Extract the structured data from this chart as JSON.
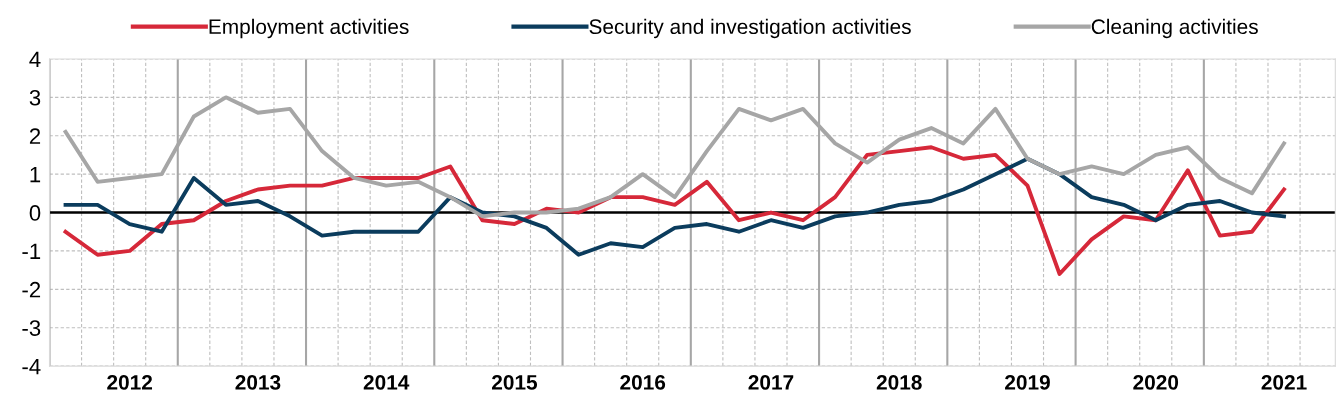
{
  "chart_data": {
    "type": "line",
    "categories": [
      null,
      null,
      "2012",
      null,
      null,
      null,
      "2013",
      null,
      null,
      null,
      "2014",
      null,
      null,
      null,
      "2015",
      null,
      null,
      null,
      "2016",
      null,
      null,
      null,
      "2017",
      null,
      null,
      null,
      "2018",
      null,
      null,
      null,
      "2019",
      null,
      null,
      null,
      "2020",
      null,
      null,
      null,
      "2021"
    ],
    "series": [
      {
        "name": "Employment activities",
        "color": "#d62839",
        "values": [
          -0.5,
          -1.1,
          -1.0,
          -0.3,
          -0.2,
          0.3,
          0.6,
          0.7,
          0.7,
          0.9,
          0.9,
          0.9,
          1.2,
          -0.2,
          -0.3,
          0.1,
          0.0,
          0.4,
          0.4,
          0.2,
          0.8,
          -0.2,
          0.0,
          -0.2,
          0.4,
          1.5,
          1.6,
          1.7,
          1.4,
          1.5,
          0.7,
          -1.6,
          -0.7,
          -0.1,
          -0.2,
          1.1,
          -0.6,
          -0.5,
          0.6
        ]
      },
      {
        "name": "Security and investigation activities",
        "color": "#0b3c5d",
        "values": [
          0.2,
          0.2,
          -0.3,
          -0.5,
          0.9,
          0.2,
          0.3,
          -0.1,
          -0.6,
          -0.5,
          -0.5,
          -0.5,
          0.4,
          0.0,
          -0.1,
          -0.4,
          -1.1,
          -0.8,
          -0.9,
          -0.4,
          -0.3,
          -0.5,
          -0.2,
          -0.4,
          -0.1,
          0.0,
          0.2,
          0.3,
          0.6,
          1.0,
          1.4,
          1.0,
          0.4,
          0.2,
          -0.2,
          0.2,
          0.3,
          0.0,
          -0.1
        ]
      },
      {
        "name": "Cleaning activities",
        "color": "#a6a6a6",
        "values": [
          2.1,
          0.8,
          0.9,
          1.0,
          2.5,
          3.0,
          2.6,
          2.7,
          1.6,
          0.9,
          0.7,
          0.8,
          0.4,
          -0.1,
          0.0,
          0.0,
          0.1,
          0.4,
          1.0,
          0.4,
          1.6,
          2.7,
          2.4,
          2.7,
          1.8,
          1.3,
          1.9,
          2.2,
          1.8,
          2.7,
          1.4,
          1.0,
          1.2,
          1.0,
          1.5,
          1.7,
          0.9,
          0.5,
          1.8
        ]
      }
    ],
    "ylim": [
      -4,
      4
    ],
    "yticks": [
      -4,
      -3,
      -2,
      -1,
      0,
      1,
      2,
      3,
      4
    ],
    "ref_lines": [
      {
        "axis": "y",
        "value": 0,
        "color": "#000000"
      }
    ],
    "grid": true,
    "legend": "top",
    "marker": "none",
    "line_style": "solid"
  }
}
